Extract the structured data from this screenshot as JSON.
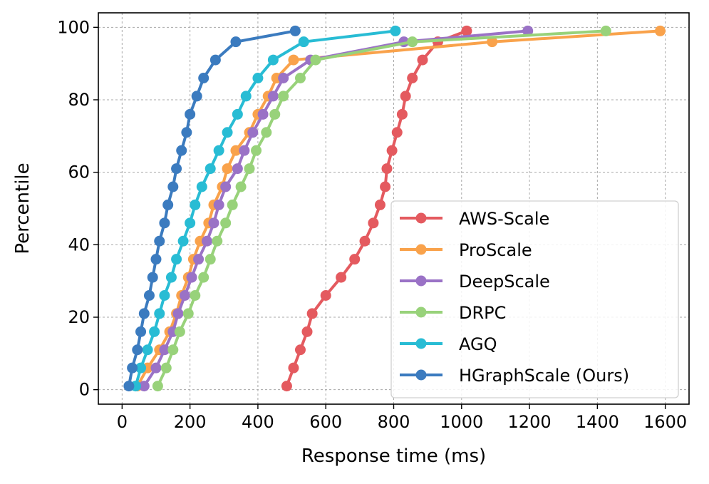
{
  "chart_data": {
    "type": "line",
    "title": "",
    "xlabel": "Response time (ms)",
    "ylabel": "Percentile",
    "xlim": [
      -70,
      1670
    ],
    "ylim": [
      -4,
      104
    ],
    "xticks": [
      0,
      200,
      400,
      600,
      800,
      1000,
      1200,
      1400,
      1600
    ],
    "yticks": [
      0,
      20,
      40,
      60,
      80,
      100
    ],
    "grid": true,
    "legend_position": "lower-right",
    "percentiles": [
      1,
      6,
      11,
      16,
      21,
      26,
      31,
      36,
      41,
      46,
      51,
      56,
      61,
      66,
      71,
      76,
      81,
      86,
      91,
      96,
      99
    ],
    "series": [
      {
        "name": "AWS-Scale",
        "color": "#e45a5f",
        "x": [
          485,
          505,
          525,
          545,
          560,
          600,
          645,
          685,
          715,
          740,
          760,
          775,
          780,
          795,
          810,
          825,
          835,
          855,
          885,
          930,
          1015
        ]
      },
      {
        "name": "ProScale",
        "color": "#f9a24b",
        "x": [
          45,
          75,
          110,
          140,
          160,
          175,
          195,
          210,
          230,
          255,
          270,
          295,
          310,
          335,
          375,
          400,
          430,
          455,
          505,
          1090,
          1585
        ]
      },
      {
        "name": "DeepScale",
        "color": "#9a72c6",
        "x": [
          65,
          100,
          125,
          150,
          165,
          185,
          205,
          225,
          250,
          270,
          285,
          305,
          340,
          360,
          385,
          415,
          445,
          475,
          555,
          830,
          1195
        ]
      },
      {
        "name": "DRPC",
        "color": "#98d27a",
        "x": [
          105,
          130,
          150,
          170,
          195,
          215,
          240,
          260,
          280,
          305,
          325,
          350,
          375,
          395,
          425,
          450,
          475,
          525,
          570,
          855,
          1425
        ]
      },
      {
        "name": "AGQ",
        "color": "#28bcd4",
        "x": [
          40,
          55,
          75,
          95,
          110,
          125,
          145,
          160,
          180,
          200,
          215,
          235,
          260,
          285,
          310,
          340,
          365,
          400,
          445,
          535,
          805
        ]
      },
      {
        "name": "HGraphScale (Ours)",
        "color": "#3b7bbf",
        "x": [
          20,
          30,
          45,
          55,
          65,
          80,
          90,
          100,
          110,
          125,
          135,
          150,
          160,
          175,
          190,
          200,
          220,
          240,
          275,
          335,
          510
        ]
      }
    ]
  }
}
